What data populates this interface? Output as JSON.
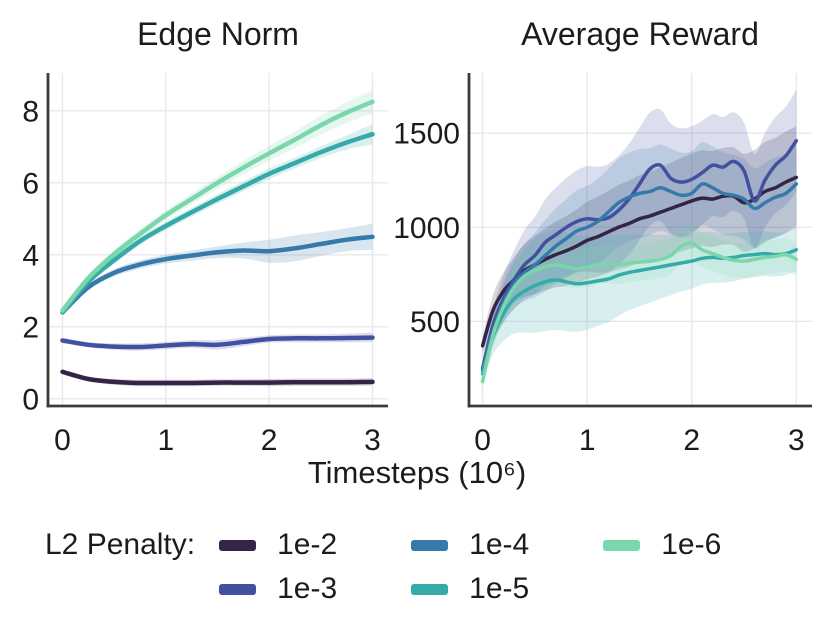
{
  "figure": {
    "xlabel": "Timesteps (10⁶)",
    "legend": {
      "title": "L2 Penalty:",
      "entries": [
        "1e-2",
        "1e-3",
        "1e-4",
        "1e-5",
        "1e-6"
      ]
    }
  },
  "chart_data": [
    {
      "type": "line",
      "title": "Edge Norm",
      "xlabel": "Timesteps (10⁶)",
      "grid": true,
      "legend_position": "below figure",
      "xlim": [
        -0.14,
        3.15
      ],
      "ylim": [
        -0.2,
        9.05
      ],
      "xticks": [
        0,
        1,
        2,
        3
      ],
      "yticks": [
        0,
        2,
        4,
        6,
        8
      ],
      "x": [
        0,
        0.25,
        0.5,
        0.75,
        1,
        1.25,
        1.5,
        1.75,
        2,
        2.25,
        2.5,
        2.75,
        3
      ],
      "series": [
        {
          "name": "1e-2",
          "color": "#342547",
          "values": [
            0.75,
            0.55,
            0.47,
            0.44,
            0.44,
            0.44,
            0.45,
            0.45,
            0.45,
            0.46,
            0.46,
            0.46,
            0.47
          ],
          "band": [
            0.04,
            0.06,
            0.08,
            0.09,
            0.09,
            0.09,
            0.09,
            0.09,
            0.1,
            0.1,
            0.1,
            0.1,
            0.1
          ]
        },
        {
          "name": "1e-3",
          "color": "#41509f",
          "values": [
            1.62,
            1.5,
            1.45,
            1.44,
            1.48,
            1.52,
            1.5,
            1.58,
            1.66,
            1.68,
            1.68,
            1.69,
            1.7
          ],
          "band": [
            0.05,
            0.07,
            0.09,
            0.1,
            0.1,
            0.11,
            0.13,
            0.12,
            0.1,
            0.11,
            0.11,
            0.12,
            0.13
          ]
        },
        {
          "name": "1e-4",
          "color": "#3679ab",
          "values": [
            2.4,
            3.1,
            3.5,
            3.73,
            3.88,
            3.98,
            4.07,
            4.12,
            4.1,
            4.18,
            4.3,
            4.42,
            4.5
          ],
          "band": [
            0.06,
            0.09,
            0.1,
            0.12,
            0.12,
            0.14,
            0.16,
            0.22,
            0.32,
            0.36,
            0.33,
            0.32,
            0.36
          ]
        },
        {
          "name": "1e-5",
          "color": "#36aaa8",
          "values": [
            2.4,
            3.25,
            3.85,
            4.38,
            4.8,
            5.18,
            5.55,
            5.9,
            6.25,
            6.55,
            6.85,
            7.12,
            7.35
          ],
          "band": [
            0.06,
            0.08,
            0.1,
            0.1,
            0.12,
            0.12,
            0.13,
            0.14,
            0.15,
            0.15,
            0.16,
            0.2,
            0.28
          ]
        },
        {
          "name": "1e-6",
          "color": "#79d7ab",
          "values": [
            2.45,
            3.35,
            4.02,
            4.58,
            5.1,
            5.55,
            6.0,
            6.42,
            6.82,
            7.2,
            7.6,
            7.95,
            8.25
          ],
          "band": [
            0.06,
            0.09,
            0.11,
            0.13,
            0.14,
            0.15,
            0.17,
            0.19,
            0.21,
            0.23,
            0.26,
            0.29,
            0.32
          ]
        }
      ]
    },
    {
      "type": "line",
      "title": "Average Reward",
      "xlabel": "Timesteps (10⁶)",
      "grid": true,
      "legend_position": "below figure",
      "xlim": [
        -0.13,
        3.15
      ],
      "ylim": [
        50,
        1820
      ],
      "xticks": [
        0,
        1,
        2,
        3
      ],
      "yticks": [
        500,
        1000,
        1500
      ],
      "x": [
        0,
        0.1,
        0.2,
        0.3,
        0.4,
        0.5,
        0.6,
        0.7,
        0.8,
        0.9,
        1.0,
        1.1,
        1.2,
        1.3,
        1.4,
        1.5,
        1.6,
        1.7,
        1.8,
        1.9,
        2.0,
        2.1,
        2.2,
        2.3,
        2.4,
        2.5,
        2.6,
        2.7,
        2.8,
        2.9,
        3.0
      ],
      "series": [
        {
          "name": "1e-2",
          "color": "#342547",
          "values": [
            370,
            560,
            660,
            720,
            770,
            800,
            830,
            855,
            875,
            900,
            930,
            950,
            975,
            1000,
            1020,
            1045,
            1060,
            1080,
            1100,
            1120,
            1140,
            1155,
            1150,
            1165,
            1165,
            1130,
            1150,
            1190,
            1210,
            1240,
            1265
          ],
          "band": [
            50,
            80,
            100,
            120,
            140,
            155,
            165,
            175,
            185,
            195,
            205,
            212,
            218,
            224,
            228,
            232,
            236,
            240,
            244,
            248,
            252,
            254,
            255,
            257,
            259,
            260,
            262,
            264,
            266,
            269,
            272
          ]
        },
        {
          "name": "1e-3",
          "color": "#41509f",
          "values": [
            250,
            480,
            620,
            720,
            800,
            850,
            920,
            960,
            1000,
            1030,
            1045,
            1040,
            1050,
            1090,
            1150,
            1230,
            1310,
            1330,
            1260,
            1240,
            1255,
            1290,
            1330,
            1320,
            1350,
            1300,
            1140,
            1250,
            1330,
            1380,
            1460
          ],
          "band": [
            45,
            85,
            125,
            155,
            185,
            205,
            230,
            250,
            262,
            272,
            280,
            282,
            286,
            290,
            294,
            298,
            300,
            296,
            291,
            286,
            281,
            276,
            271,
            266,
            261,
            256,
            251,
            251,
            256,
            261,
            271
          ]
        },
        {
          "name": "1e-4",
          "color": "#3679ab",
          "values": [
            240,
            450,
            600,
            700,
            760,
            800,
            850,
            900,
            940,
            980,
            1000,
            1030,
            1080,
            1130,
            1160,
            1180,
            1190,
            1210,
            1190,
            1170,
            1180,
            1230,
            1210,
            1180,
            1170,
            1150,
            1100,
            1130,
            1160,
            1180,
            1230
          ],
          "band": [
            45,
            75,
            105,
            132,
            152,
            172,
            190,
            200,
            210,
            216,
            220,
            226,
            230,
            234,
            236,
            236,
            232,
            230,
            228,
            226,
            224,
            222,
            220,
            218,
            216,
            215,
            214,
            213,
            212,
            212,
            216
          ]
        },
        {
          "name": "1e-5",
          "color": "#36aaa8",
          "values": [
            220,
            420,
            540,
            620,
            660,
            690,
            710,
            720,
            710,
            700,
            705,
            715,
            725,
            745,
            760,
            770,
            780,
            790,
            800,
            810,
            820,
            835,
            840,
            835,
            840,
            850,
            855,
            860,
            855,
            860,
            880
          ],
          "band": [
            45,
            95,
            145,
            185,
            220,
            250,
            262,
            266,
            262,
            256,
            250,
            240,
            230,
            216,
            202,
            190,
            180,
            170,
            161,
            152,
            146,
            140,
            135,
            130,
            127,
            124,
            121,
            119,
            117,
            114,
            112
          ]
        },
        {
          "name": "1e-6",
          "color": "#79d7ab",
          "values": [
            180,
            430,
            580,
            680,
            740,
            770,
            790,
            800,
            790,
            780,
            790,
            800,
            805,
            800,
            810,
            815,
            820,
            830,
            850,
            900,
            915,
            880,
            860,
            840,
            825,
            820,
            830,
            840,
            845,
            855,
            830
          ],
          "band": [
            40,
            70,
            90,
            100,
            105,
            108,
            110,
            110,
            108,
            106,
            105,
            104,
            103,
            102,
            101,
            100,
            99,
            98,
            97,
            96,
            95,
            94,
            93,
            92,
            91,
            90,
            90,
            89,
            89,
            88,
            88
          ]
        }
      ]
    }
  ]
}
